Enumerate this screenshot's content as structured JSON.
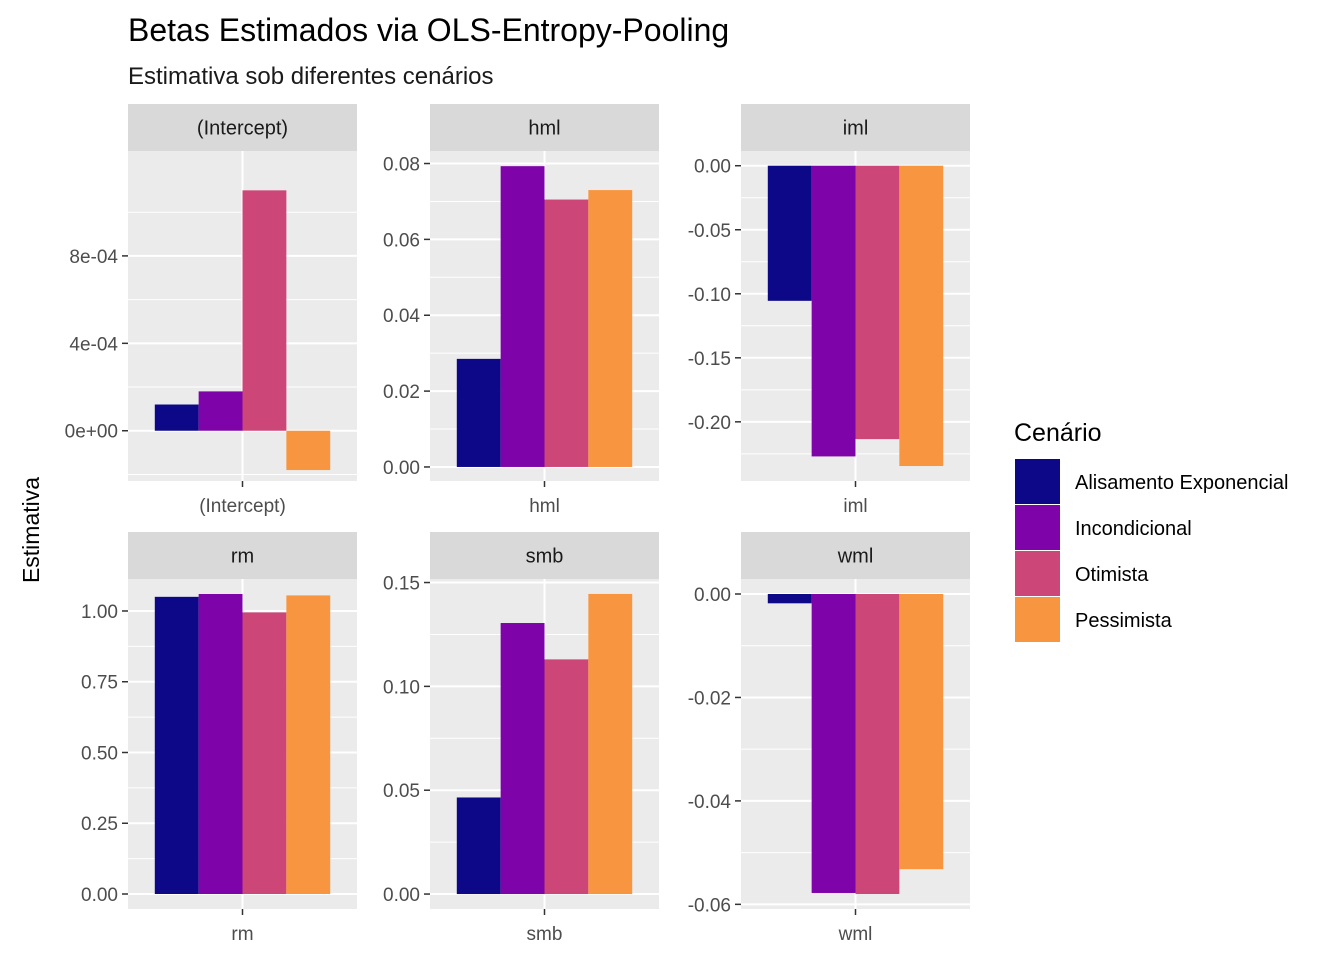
{
  "chart_data": {
    "type": "bar",
    "title": "Betas Estimados via OLS-Entropy-Pooling",
    "subtitle": "Estimativa sob diferentes cenários",
    "ylabel": "Estimativa",
    "legend": {
      "title": "Cenário",
      "placement": "right",
      "entries": [
        {
          "name": "Alisamento Exponencial",
          "color": "#0d0887"
        },
        {
          "name": "Incondicional",
          "color": "#7e03a8"
        },
        {
          "name": "Otimista",
          "color": "#cc4778"
        },
        {
          "name": "Pessimista",
          "color": "#f89540"
        }
      ]
    },
    "grid": true,
    "facets": [
      {
        "name": "(Intercept)",
        "category": "(Intercept)",
        "values": [
          0.00012,
          0.00018,
          0.0011,
          -0.00018
        ],
        "ylim": [
          -0.00023,
          0.00128
        ],
        "ticks": [
          0,
          0.0004,
          0.0008
        ],
        "tick_labels": [
          "0e+00",
          "4e-04",
          "8e-04"
        ]
      },
      {
        "name": "hml",
        "category": "hml",
        "values": [
          0.0285,
          0.0793,
          0.0705,
          0.073
        ],
        "ylim": [
          -0.0037,
          0.0833
        ],
        "ticks": [
          0,
          0.02,
          0.04,
          0.06,
          0.08
        ],
        "tick_labels": [
          "0.00",
          "0.02",
          "0.04",
          "0.06",
          "0.08"
        ]
      },
      {
        "name": "iml",
        "category": "iml",
        "values": [
          -0.1055,
          -0.227,
          -0.2135,
          -0.2345
        ],
        "ylim": [
          -0.2462,
          0.0115
        ],
        "ticks": [
          -0.2,
          -0.15,
          -0.1,
          -0.05,
          0
        ],
        "tick_labels": [
          "-0.20",
          "-0.15",
          "-0.10",
          "-0.05",
          "0.00"
        ]
      },
      {
        "name": "rm",
        "category": "rm",
        "values": [
          1.05,
          1.06,
          0.995,
          1.055
        ],
        "ylim": [
          -0.053,
          1.113
        ],
        "ticks": [
          0,
          0.25,
          0.5,
          0.75,
          1
        ],
        "tick_labels": [
          "0.00",
          "0.25",
          "0.50",
          "0.75",
          "1.00"
        ]
      },
      {
        "name": "smb",
        "category": "smb",
        "values": [
          0.0465,
          0.1305,
          0.113,
          0.1445
        ],
        "ylim": [
          -0.0072,
          0.1517
        ],
        "ticks": [
          0,
          0.05,
          0.1,
          0.15
        ],
        "tick_labels": [
          "0.00",
          "0.05",
          "0.10",
          "0.15"
        ]
      },
      {
        "name": "wml",
        "category": "wml",
        "values": [
          -0.0018,
          -0.0578,
          -0.058,
          -0.0532
        ],
        "ylim": [
          -0.0609,
          0.0029
        ],
        "ticks": [
          -0.06,
          -0.04,
          -0.02,
          0
        ],
        "tick_labels": [
          "-0.06",
          "-0.04",
          "-0.02",
          "0.00"
        ]
      }
    ]
  }
}
